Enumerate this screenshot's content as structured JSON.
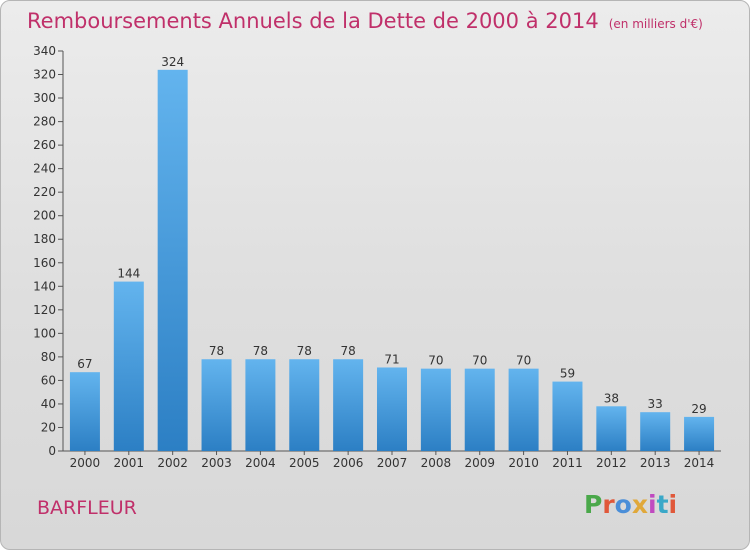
{
  "header": {
    "title": "Remboursements Annuels de la Dette de 2000 à 2014",
    "unit": "(en milliers d'€)"
  },
  "footer": {
    "place": "BARFLEUR",
    "logo_text": "Proxiti"
  },
  "colors": {
    "title": "#c0306a",
    "bar_light": "#63b4ee",
    "bar_dark": "#2c7fc4"
  },
  "chart_data": {
    "type": "bar",
    "title": "Remboursements Annuels de la Dette de 2000 à 2014",
    "subtitle": "(en milliers d'€)",
    "xlabel": "",
    "ylabel": "",
    "categories": [
      "2000",
      "2001",
      "2002",
      "2003",
      "2004",
      "2005",
      "2006",
      "2007",
      "2008",
      "2009",
      "2010",
      "2011",
      "2012",
      "2013",
      "2014"
    ],
    "values": [
      67,
      144,
      324,
      78,
      78,
      78,
      78,
      71,
      70,
      70,
      70,
      59,
      38,
      33,
      29
    ],
    "ylim": [
      0,
      340
    ],
    "yticks": [
      0,
      20,
      40,
      60,
      80,
      100,
      120,
      140,
      160,
      180,
      200,
      220,
      240,
      260,
      280,
      300,
      320,
      340
    ],
    "grid": false,
    "legend": "none"
  }
}
